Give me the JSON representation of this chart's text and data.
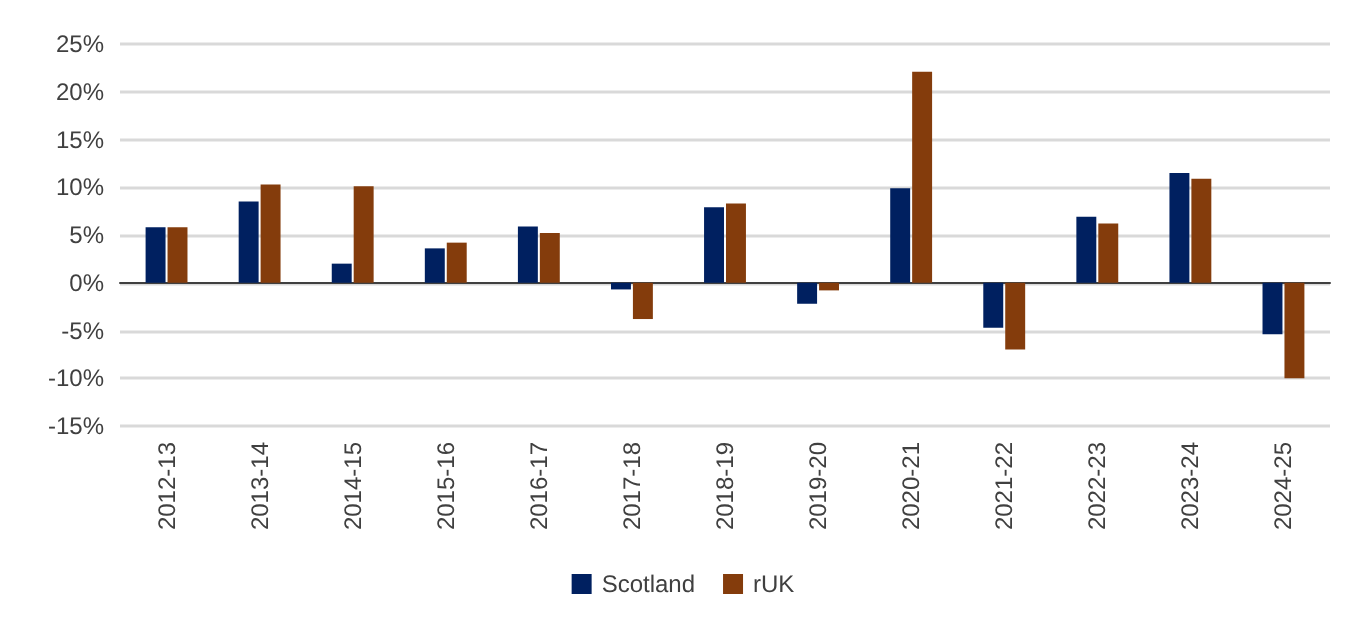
{
  "chart_data": {
    "type": "bar",
    "categories": [
      "2012-13",
      "2013-14",
      "2014-15",
      "2015-16",
      "2016-17",
      "2017-18",
      "2018-19",
      "2019-20",
      "2020-21",
      "2021-22",
      "2022-23",
      "2023-24",
      "2024-25"
    ],
    "series": [
      {
        "name": "Scotland",
        "color": "#002060",
        "values": [
          5.8,
          8.5,
          2.0,
          3.6,
          5.9,
          -0.7,
          7.9,
          -2.2,
          9.9,
          -4.7,
          6.9,
          11.5,
          -5.4
        ]
      },
      {
        "name": "rUK",
        "color": "#843c0c",
        "values": [
          5.8,
          10.3,
          10.1,
          4.2,
          5.2,
          -3.8,
          8.3,
          -0.8,
          22.1,
          -7.0,
          6.2,
          10.9,
          -10.0
        ]
      }
    ],
    "ylim": [
      -15,
      25
    ],
    "yticks": [
      {
        "value": -15,
        "label": "-15%"
      },
      {
        "value": -10,
        "label": "-10%"
      },
      {
        "value": -5,
        "label": "-5%"
      },
      {
        "value": 0,
        "label": "0%"
      },
      {
        "value": 5,
        "label": "5%"
      },
      {
        "value": 10,
        "label": "10%"
      },
      {
        "value": 15,
        "label": "15%"
      },
      {
        "value": 20,
        "label": "20%"
      },
      {
        "value": 25,
        "label": "25%"
      }
    ],
    "grid": "y",
    "legend": "bottom"
  }
}
